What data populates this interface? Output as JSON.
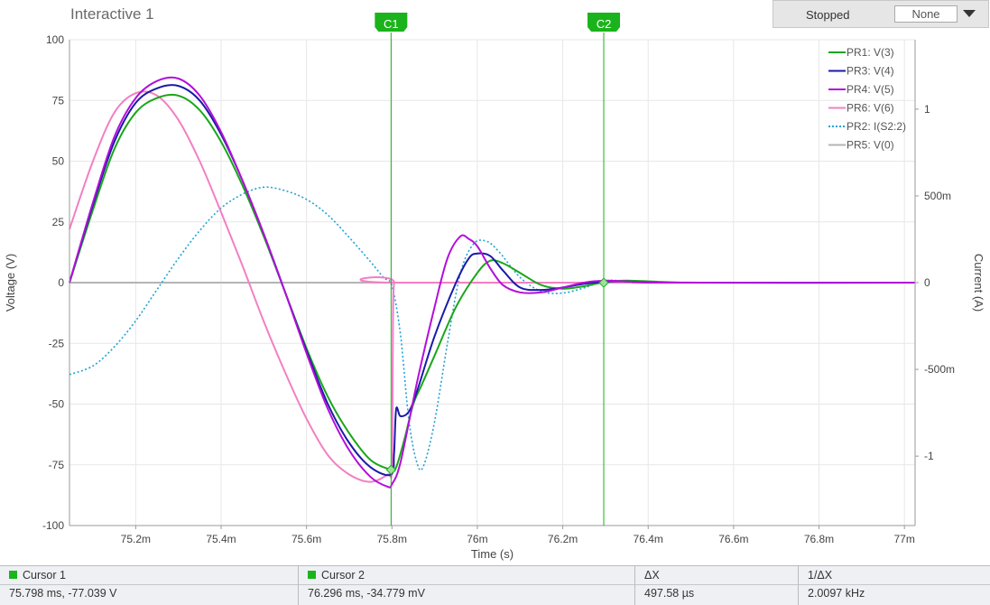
{
  "window": {
    "title": "Interactive 1",
    "status": "Stopped",
    "trigger": "None"
  },
  "colors": {
    "pr1": "#19a619",
    "pr3": "#1a1aa8",
    "pr4": "#b30fd9",
    "pr6": "#f37fc3",
    "pr2": "#1ea3d6",
    "pr5": "#b4b4b4",
    "cursor": "#1bb31b",
    "grid": "#e7e7e7"
  },
  "chart_data": {
    "type": "line",
    "xlabel": "Time (s)",
    "ylabel": "Voltage (V)",
    "y2label": "Current (A)",
    "xlim": [
      75.045,
      77.025
    ],
    "ylim": [
      -100,
      100
    ],
    "y2lim": [
      -1.4,
      1.4
    ],
    "xticks": [
      75.2,
      75.4,
      75.6,
      75.8,
      76.0,
      76.2,
      76.4,
      76.6,
      76.8,
      77.0
    ],
    "xtick_labels": [
      "75.2m",
      "75.4m",
      "75.6m",
      "75.8m",
      "76m",
      "76.2m",
      "76.4m",
      "76.6m",
      "76.8m",
      "77m"
    ],
    "yticks": [
      100,
      75,
      50,
      25,
      0,
      -25,
      -50,
      -75,
      -100
    ],
    "ytick_labels": [
      "100",
      "75",
      "50",
      "25",
      "0",
      "-25",
      "-50",
      "-75",
      "-100"
    ],
    "y2ticks": [
      1,
      0.5,
      0,
      -0.5,
      -1
    ],
    "y2tick_labels": [
      "1",
      "500m",
      "0",
      "-500m",
      "-1"
    ],
    "legend_position": "top-right",
    "cursors": [
      {
        "label": "C1",
        "x": 75.798,
        "y": -77.04
      },
      {
        "label": "C2",
        "x": 76.296,
        "y": -0.0348
      }
    ],
    "series": [
      {
        "name": "PR1: V(3)",
        "color_key": "pr1",
        "axis": "left",
        "dash": false,
        "points": [
          [
            75.045,
            0
          ],
          [
            75.1,
            30
          ],
          [
            75.15,
            55
          ],
          [
            75.2,
            70
          ],
          [
            75.25,
            76
          ],
          [
            75.3,
            77
          ],
          [
            75.35,
            71
          ],
          [
            75.4,
            58
          ],
          [
            75.45,
            40
          ],
          [
            75.5,
            19
          ],
          [
            75.55,
            -4
          ],
          [
            75.6,
            -27
          ],
          [
            75.65,
            -47
          ],
          [
            75.7,
            -62
          ],
          [
            75.75,
            -73
          ],
          [
            75.798,
            -77
          ],
          [
            75.81,
            -76
          ],
          [
            75.83,
            -64
          ],
          [
            75.85,
            -50
          ],
          [
            75.87,
            -42
          ],
          [
            75.9,
            -30
          ],
          [
            75.95,
            -10
          ],
          [
            76.0,
            4
          ],
          [
            76.03,
            9
          ],
          [
            76.06,
            8
          ],
          [
            76.1,
            4
          ],
          [
            76.15,
            -1
          ],
          [
            76.2,
            -2.5
          ],
          [
            76.25,
            -1.5
          ],
          [
            76.3,
            0.3
          ],
          [
            76.35,
            0.8
          ],
          [
            76.45,
            0.2
          ],
          [
            76.55,
            0
          ],
          [
            77.025,
            0
          ]
        ]
      },
      {
        "name": "PR3: V(4)",
        "color_key": "pr3",
        "axis": "left",
        "dash": false,
        "points": [
          [
            75.045,
            0
          ],
          [
            75.1,
            32
          ],
          [
            75.15,
            58
          ],
          [
            75.2,
            74
          ],
          [
            75.25,
            80
          ],
          [
            75.3,
            81
          ],
          [
            75.35,
            75
          ],
          [
            75.4,
            61
          ],
          [
            75.45,
            42
          ],
          [
            75.5,
            20
          ],
          [
            75.55,
            -4
          ],
          [
            75.6,
            -28
          ],
          [
            75.65,
            -50
          ],
          [
            75.7,
            -66
          ],
          [
            75.75,
            -76
          ],
          [
            75.798,
            -79
          ],
          [
            75.805,
            -70
          ],
          [
            75.81,
            -52
          ],
          [
            75.82,
            -55
          ],
          [
            75.84,
            -53
          ],
          [
            75.86,
            -44
          ],
          [
            75.9,
            -22
          ],
          [
            75.95,
            0
          ],
          [
            75.98,
            10
          ],
          [
            76.0,
            12
          ],
          [
            76.03,
            11
          ],
          [
            76.06,
            5
          ],
          [
            76.1,
            -2
          ],
          [
            76.15,
            -3
          ],
          [
            76.2,
            -2
          ],
          [
            76.25,
            -0.5
          ],
          [
            76.3,
            0.5
          ],
          [
            76.35,
            0.5
          ],
          [
            76.45,
            0
          ],
          [
            77.025,
            0
          ]
        ]
      },
      {
        "name": "PR4: V(5)",
        "color_key": "pr4",
        "axis": "left",
        "dash": false,
        "points": [
          [
            75.045,
            0
          ],
          [
            75.1,
            33
          ],
          [
            75.15,
            60
          ],
          [
            75.2,
            76
          ],
          [
            75.25,
            83
          ],
          [
            75.3,
            84
          ],
          [
            75.35,
            77
          ],
          [
            75.4,
            62
          ],
          [
            75.45,
            42
          ],
          [
            75.5,
            20
          ],
          [
            75.55,
            -4
          ],
          [
            75.6,
            -29
          ],
          [
            75.65,
            -52
          ],
          [
            75.7,
            -69
          ],
          [
            75.75,
            -80
          ],
          [
            75.79,
            -84
          ],
          [
            75.8,
            -83
          ],
          [
            75.82,
            -74
          ],
          [
            75.86,
            -40
          ],
          [
            75.9,
            -10
          ],
          [
            75.93,
            10
          ],
          [
            75.96,
            19
          ],
          [
            75.98,
            18
          ],
          [
            76.0,
            15
          ],
          [
            76.03,
            6
          ],
          [
            76.06,
            -1
          ],
          [
            76.1,
            -4
          ],
          [
            76.15,
            -4
          ],
          [
            76.2,
            -2
          ],
          [
            76.25,
            0
          ],
          [
            76.3,
            0.8
          ],
          [
            76.35,
            0.5
          ],
          [
            76.45,
            0
          ],
          [
            77.025,
            0
          ]
        ]
      },
      {
        "name": "PR6: V(6)",
        "color_key": "pr6",
        "axis": "left",
        "dash": false,
        "points": [
          [
            75.045,
            22
          ],
          [
            75.1,
            50
          ],
          [
            75.15,
            70
          ],
          [
            75.2,
            78
          ],
          [
            75.25,
            77
          ],
          [
            75.3,
            67
          ],
          [
            75.35,
            50
          ],
          [
            75.4,
            29
          ],
          [
            75.45,
            7
          ],
          [
            75.5,
            -16
          ],
          [
            75.55,
            -37
          ],
          [
            75.6,
            -56
          ],
          [
            75.65,
            -71
          ],
          [
            75.7,
            -79
          ],
          [
            75.75,
            -82
          ],
          [
            75.79,
            -79
          ],
          [
            75.8,
            -76
          ],
          [
            75.802,
            -30
          ],
          [
            75.805,
            0
          ],
          [
            75.82,
            0
          ],
          [
            77.025,
            0
          ]
        ]
      },
      {
        "name": "PR2: I(S2:2)",
        "color_key": "pr2",
        "axis": "right",
        "dash": true,
        "points": [
          [
            75.045,
            -0.53
          ],
          [
            75.1,
            -0.48
          ],
          [
            75.15,
            -0.37
          ],
          [
            75.2,
            -0.22
          ],
          [
            75.25,
            -0.04
          ],
          [
            75.3,
            0.14
          ],
          [
            75.35,
            0.3
          ],
          [
            75.4,
            0.43
          ],
          [
            75.45,
            0.51
          ],
          [
            75.5,
            0.55
          ],
          [
            75.55,
            0.53
          ],
          [
            75.6,
            0.48
          ],
          [
            75.65,
            0.39
          ],
          [
            75.7,
            0.26
          ],
          [
            75.75,
            0.12
          ],
          [
            75.78,
            0.03
          ],
          [
            75.8,
            -0.02
          ],
          [
            75.82,
            -0.3
          ],
          [
            75.84,
            -0.8
          ],
          [
            75.86,
            -1.05
          ],
          [
            75.875,
            -1.05
          ],
          [
            75.9,
            -0.8
          ],
          [
            75.93,
            -0.35
          ],
          [
            75.96,
            0.05
          ],
          [
            75.99,
            0.22
          ],
          [
            76.02,
            0.24
          ],
          [
            76.05,
            0.18
          ],
          [
            76.1,
            0.03
          ],
          [
            76.15,
            -0.05
          ],
          [
            76.2,
            -0.06
          ],
          [
            76.25,
            -0.03
          ],
          [
            76.3,
            0.01
          ],
          [
            76.35,
            0.01
          ],
          [
            76.45,
            0
          ],
          [
            77.025,
            0
          ]
        ]
      },
      {
        "name": "PR5: V(0)",
        "color_key": "pr5",
        "axis": "left",
        "dash": false,
        "points": [
          [
            75.045,
            0
          ],
          [
            77.025,
            0
          ]
        ]
      }
    ]
  },
  "status_bar": {
    "cursor1": {
      "label": "Cursor 1",
      "value": "75.798 ms, -77.039 V"
    },
    "cursor2": {
      "label": "Cursor 2",
      "value": "76.296 ms, -34.779 mV"
    },
    "dx": {
      "label": "ΔX",
      "value": "497.58 µs"
    },
    "inv_dx": {
      "label": "1/ΔX",
      "value": "2.0097 kHz"
    }
  }
}
